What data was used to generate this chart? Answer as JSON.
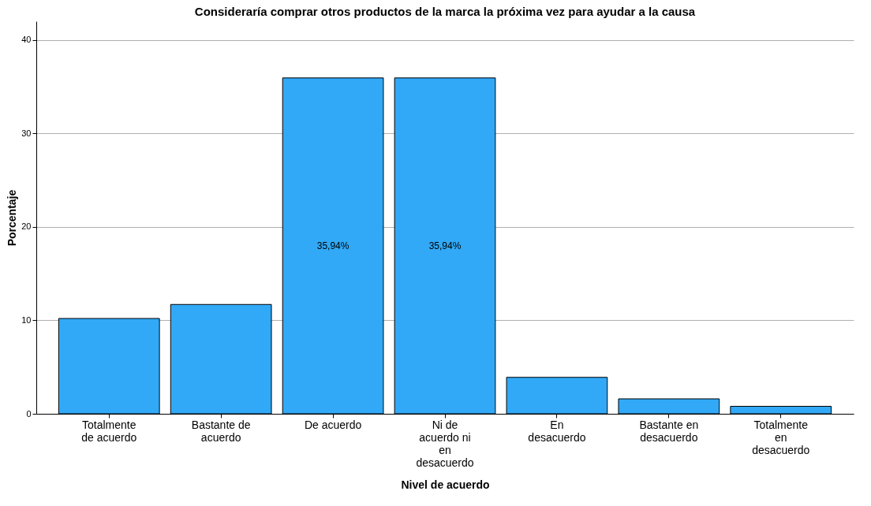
{
  "chart_data": {
    "type": "bar",
    "title": "Consideraría comprar otros productos de la marca la próxima vez para ayudar a la causa",
    "xlabel": "Nivel de acuerdo",
    "ylabel": "Porcentaje",
    "categories": [
      "Totalmente de acuerdo",
      "Bastante de acuerdo",
      "De acuerdo",
      "Ni de acuerdo ni en desacuerdo",
      "En desacuerdo",
      "Bastante en desacuerdo",
      "Totalmente en desacuerdo"
    ],
    "values": [
      10.2,
      11.7,
      35.94,
      35.94,
      3.9,
      1.6,
      0.8
    ],
    "value_labels": [
      null,
      null,
      "35,94%",
      "35,94%",
      null,
      null,
      null
    ],
    "color": "#31a9f7",
    "ylim": [
      0,
      42
    ],
    "yticks": [
      0,
      10,
      20,
      30,
      40
    ],
    "grid": "y"
  }
}
